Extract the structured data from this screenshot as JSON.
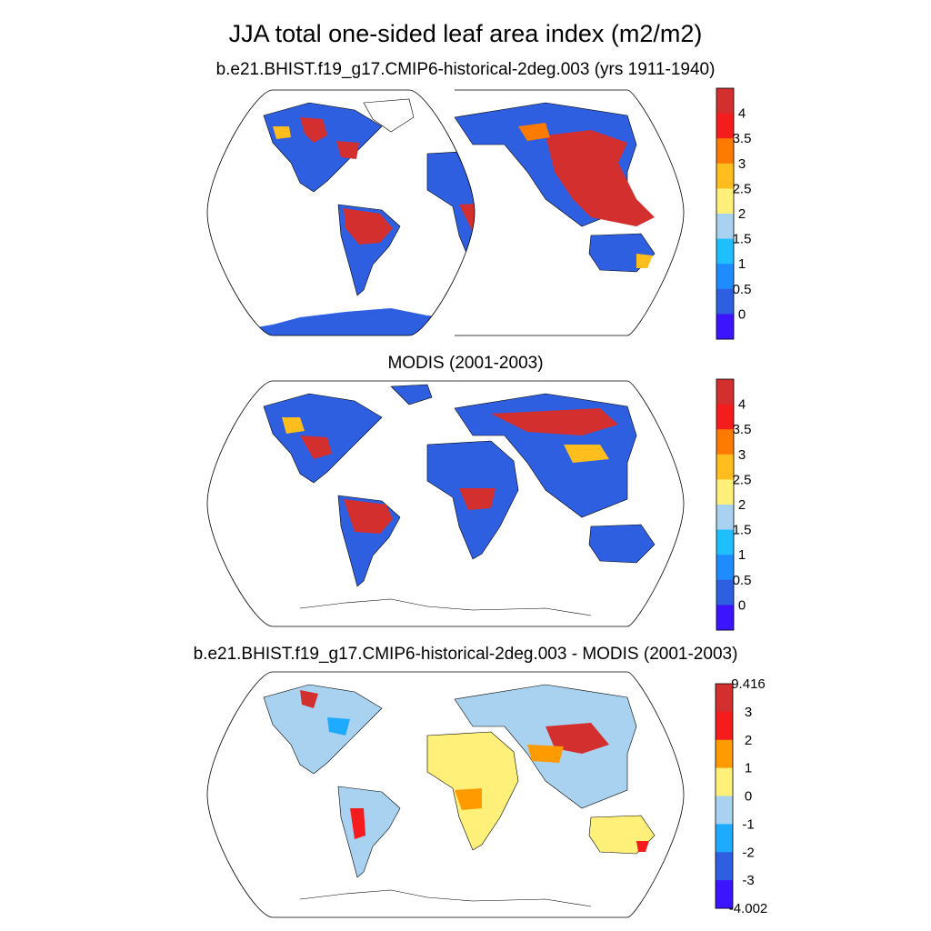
{
  "figure": {
    "title": "JJA total one-sided leaf area index (m2/m2)"
  },
  "panels": [
    {
      "subtitle": "b.e21.BHIST.f19_g17.CMIP6-historical-2deg.003 (yrs 1911-1940)",
      "colorbar": {
        "labels": [
          "4",
          "3.5",
          "3",
          "2.5",
          "2",
          "1.5",
          "1",
          "0.5",
          "0"
        ],
        "colors": [
          "#d32f2f",
          "#f41c1c",
          "#ff7a00",
          "#ffbe1e",
          "#fff07a",
          "#a8d2f0",
          "#1ebeff",
          "#1e8cff",
          "#2e5fe0",
          "#3c14ff"
        ]
      }
    },
    {
      "subtitle": "MODIS (2001-2003)",
      "colorbar": {
        "labels": [
          "4",
          "3.5",
          "3",
          "2.5",
          "2",
          "1.5",
          "1",
          "0.5",
          "0"
        ],
        "colors": [
          "#d32f2f",
          "#f41c1c",
          "#ff7a00",
          "#ffbe1e",
          "#fff07a",
          "#a8d2f0",
          "#1ebeff",
          "#1e8cff",
          "#2e5fe0",
          "#3c14ff"
        ]
      }
    },
    {
      "subtitle": "b.e21.BHIST.f19_g17.CMIP6-historical-2deg.003 - MODIS (2001-2003)",
      "colorbar": {
        "labels": [
          "9.416",
          "3",
          "2",
          "1",
          "0",
          "-1",
          "-2",
          "-3",
          "-4.002"
        ],
        "colors": [
          "#d32f2f",
          "#f41c1c",
          "#ff9a00",
          "#fff07a",
          "#a8d2f0",
          "#1eaaff",
          "#2e5fe0",
          "#3c14ff"
        ]
      }
    }
  ]
}
